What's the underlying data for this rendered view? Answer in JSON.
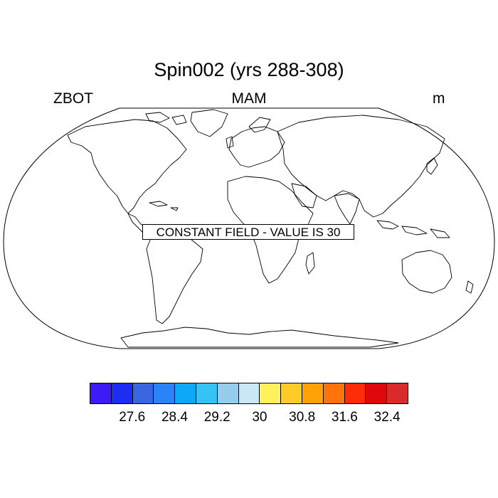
{
  "title": "Spin002 (yrs 288-308)",
  "labels": {
    "left": "ZBOT",
    "center": "MAM",
    "right": "m"
  },
  "constant_message": "CONSTANT FIELD - VALUE IS 30",
  "map": {
    "projection": "robinson",
    "coastline_color": "#000000"
  },
  "colorbar": {
    "colors": [
      "#3c1bf5",
      "#1d2ef2",
      "#3a66e0",
      "#2a84f7",
      "#0ea8f7",
      "#36c2f5",
      "#96ccec",
      "#c9e8f7",
      "#fff15c",
      "#ffcb26",
      "#ffa20a",
      "#ff740a",
      "#ff2c0a",
      "#e0070d",
      "#d92b2b"
    ],
    "tick_labels": [
      "27.6",
      "28.4",
      "29.2",
      "30",
      "30.8",
      "31.6",
      "32.4"
    ]
  }
}
